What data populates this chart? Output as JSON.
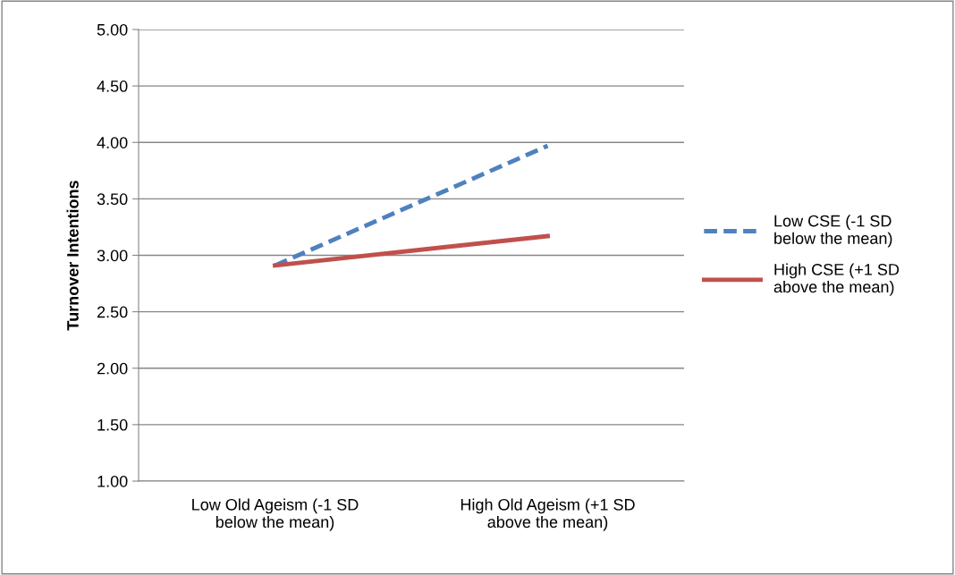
{
  "chart_data": {
    "type": "line",
    "ylabel": "Turnover Intentions",
    "categories": [
      "Low Old Ageism (-1 SD\nbelow the mean)",
      "High Old Ageism (+1 SD\nabove the mean)"
    ],
    "series": [
      {
        "name": "Low CSE (-1 SD\nbelow the mean)",
        "color": "#4f81bd",
        "line_style": "dashed",
        "values": [
          2.91,
          3.97
        ]
      },
      {
        "name": "High CSE (+1 SD\nabove the mean)",
        "color": "#c0504d",
        "line_style": "solid",
        "values": [
          2.91,
          3.17
        ]
      }
    ],
    "ylim": [
      1,
      5
    ],
    "yticks": [
      {
        "value": 1,
        "label": "1.00"
      },
      {
        "value": 1.5,
        "label": "1.50"
      },
      {
        "value": 2,
        "label": "2.00"
      },
      {
        "value": 2.5,
        "label": "2.50"
      },
      {
        "value": 3,
        "label": "3.00"
      },
      {
        "value": 3.5,
        "label": "3.50"
      },
      {
        "value": 4,
        "label": "4.00"
      },
      {
        "value": 4.5,
        "label": "4.50"
      },
      {
        "value": 5,
        "label": "5.00"
      }
    ],
    "grid": "y",
    "legend": "right",
    "marker": "none"
  }
}
